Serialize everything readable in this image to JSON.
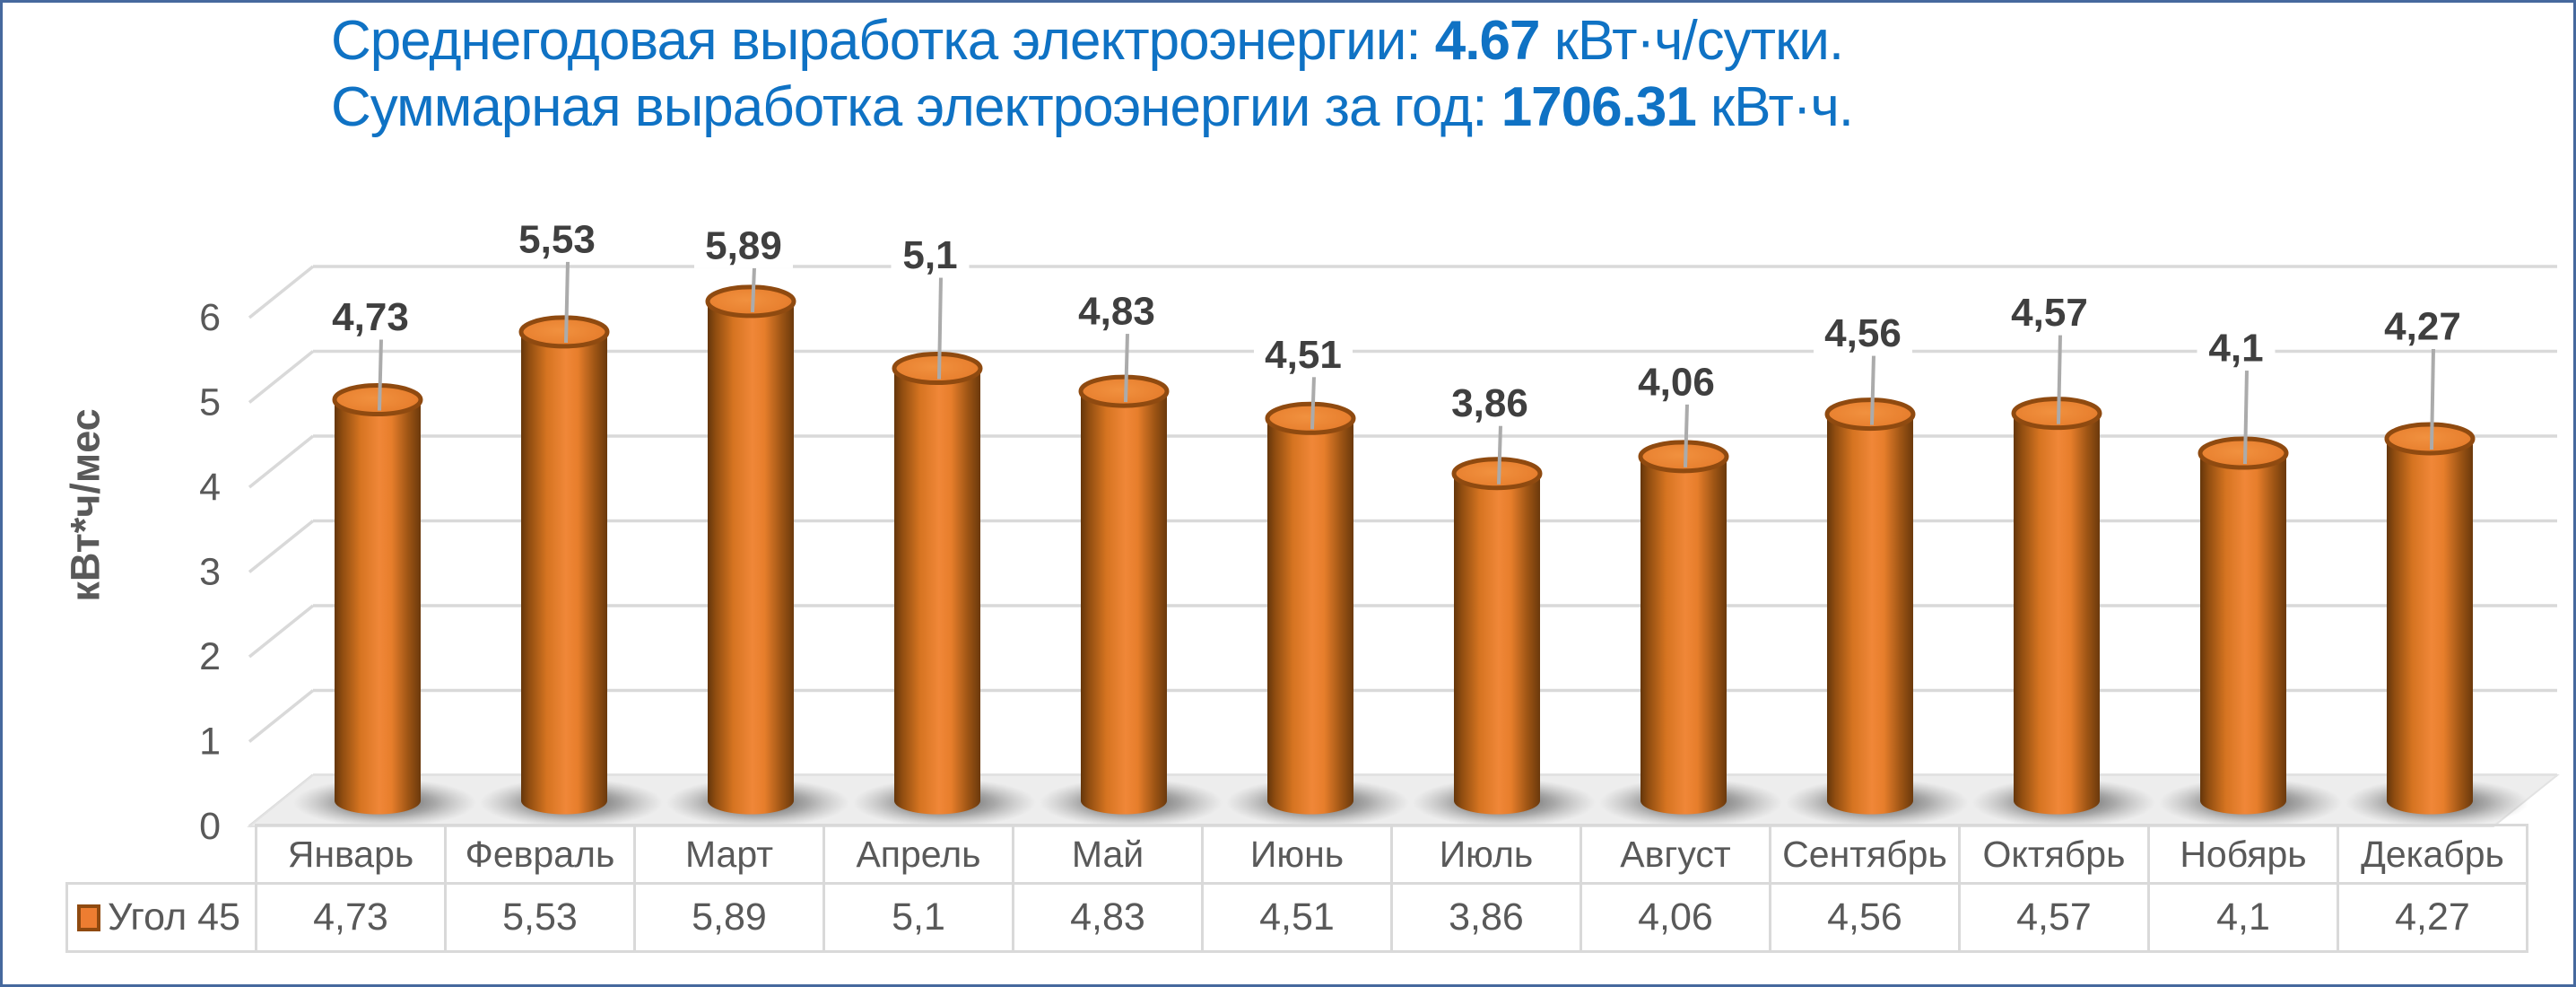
{
  "frame": {
    "border_color": "#46699E",
    "background": "#FFFFFF"
  },
  "title": {
    "color": "#0F72C4",
    "line1": {
      "prefix": "Среднегодовая выработка электроэнергии: ",
      "value": "4.67",
      "suffix": " кВт·ч/сутки."
    },
    "line2": {
      "prefix": "Суммарная выработка электроэнергии за год: ",
      "value": "1706.31",
      "suffix": " кВт·ч."
    }
  },
  "chart_data": {
    "type": "bar",
    "subtype": "3d-cylinder",
    "categories": [
      "Январь",
      "Февраль",
      "Март",
      "Апрель",
      "Май",
      "Июнь",
      "Июль",
      "Август",
      "Сентябрь",
      "Октябрь",
      "Нобярь",
      "Декабрь"
    ],
    "series": [
      {
        "name": "Угол 45",
        "color": "#ED7D31",
        "values": [
          4.73,
          5.53,
          5.89,
          5.1,
          4.83,
          4.51,
          3.86,
          4.06,
          4.56,
          4.57,
          4.1,
          4.27
        ],
        "labels": [
          "4,73",
          "5,53",
          "5,89",
          "5,1",
          "4,83",
          "4,51",
          "3,86",
          "4,06",
          "4,56",
          "4,57",
          "4,1",
          "4,27"
        ]
      }
    ],
    "ylabel": "кВт*ч/мес",
    "yticks": [
      "0",
      "1",
      "2",
      "3",
      "4",
      "5",
      "6"
    ],
    "ylim": [
      0,
      6
    ],
    "grid": true,
    "legend_position": "data-table-left",
    "data_table_shown": true,
    "colors": {
      "gridline": "#D9D9D9",
      "axis_text": "#595959",
      "data_label": "#3F3F3F",
      "leader_line": "#ABABAB",
      "bar_rim": "#8F4A10",
      "floor": "#EDEDED"
    }
  }
}
